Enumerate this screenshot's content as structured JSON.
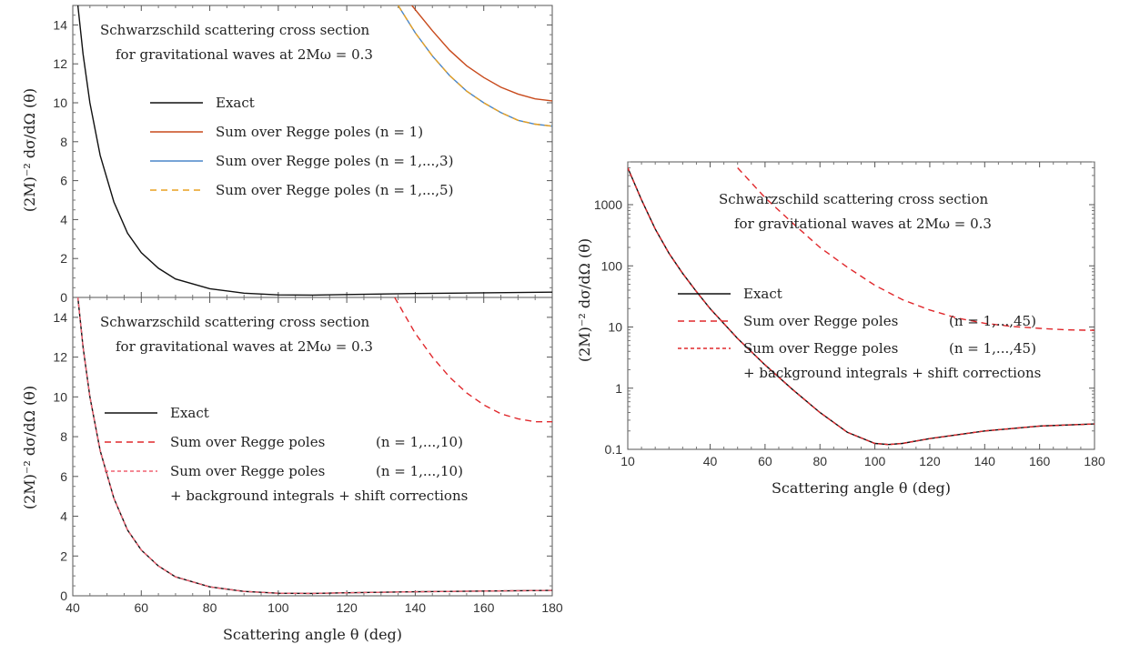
{
  "chart_data": [
    {
      "type": "line",
      "scale": "linear",
      "xlim": [
        40,
        180
      ],
      "ylim": [
        0,
        15
      ],
      "x_ticks": [],
      "y_ticks": [
        0,
        2,
        4,
        6,
        8,
        10,
        12,
        14
      ],
      "ylabel": "(2M)⁻² dσ/dΩ (θ)",
      "xlabel": "",
      "annotation": [
        "Schwarzschild scattering cross section",
        "for gravitational waves at 2Mω = 0.3"
      ],
      "legend_placement": "left-middle",
      "series": [
        {
          "name": "Exact",
          "color": "#111111",
          "style": "solid",
          "points": [
            [
              41.5,
              15
            ],
            [
              43,
              12.5
            ],
            [
              45,
              10
            ],
            [
              48,
              7.3
            ],
            [
              52,
              4.9
            ],
            [
              56,
              3.3
            ],
            [
              60,
              2.3
            ],
            [
              65,
              1.5
            ],
            [
              70,
              0.95
            ],
            [
              80,
              0.45
            ],
            [
              90,
              0.22
            ],
            [
              100,
              0.13
            ],
            [
              110,
              0.12
            ],
            [
              120,
              0.15
            ],
            [
              140,
              0.2
            ],
            [
              160,
              0.24
            ],
            [
              180,
              0.27
            ]
          ]
        },
        {
          "name": "Sum over Regge poles (n = 1)",
          "color": "#c84a1c",
          "style": "solid",
          "points": [
            [
              139,
              15
            ],
            [
              145,
              13.7
            ],
            [
              150,
              12.7
            ],
            [
              155,
              11.9
            ],
            [
              160,
              11.3
            ],
            [
              165,
              10.8
            ],
            [
              170,
              10.45
            ],
            [
              175,
              10.2
            ],
            [
              180,
              10.1
            ]
          ]
        },
        {
          "name": "Sum over Regge poles (n = 1,...,3)",
          "color": "#4a86c8",
          "style": "solid",
          "points": [
            [
              135,
              15
            ],
            [
              140,
              13.6
            ],
            [
              145,
              12.4
            ],
            [
              150,
              11.4
            ],
            [
              155,
              10.6
            ],
            [
              160,
              10
            ],
            [
              165,
              9.5
            ],
            [
              170,
              9.1
            ],
            [
              175,
              8.9
            ],
            [
              180,
              8.8
            ]
          ]
        },
        {
          "name": "Sum over Regge poles (n = 1,...,5)",
          "color": "#e8a020",
          "style": "dashed",
          "points": [
            [
              135,
              15
            ],
            [
              140,
              13.6
            ],
            [
              145,
              12.4
            ],
            [
              150,
              11.4
            ],
            [
              155,
              10.6
            ],
            [
              160,
              10
            ],
            [
              165,
              9.5
            ],
            [
              170,
              9.1
            ],
            [
              175,
              8.9
            ],
            [
              180,
              8.8
            ]
          ]
        }
      ]
    },
    {
      "type": "line",
      "scale": "linear",
      "xlim": [
        40,
        180
      ],
      "ylim": [
        0,
        15
      ],
      "x_ticks": [
        40,
        60,
        80,
        100,
        120,
        140,
        160,
        180
      ],
      "y_ticks": [
        0,
        2,
        4,
        6,
        8,
        10,
        12,
        14
      ],
      "xlabel": "Scattering angle θ (deg)",
      "ylabel": "(2M)⁻² dσ/dΩ (θ)",
      "annotation": [
        "Schwarzschild scattering cross section",
        "for gravitational waves at 2Mω = 0.3"
      ],
      "legend_placement": "left-middle",
      "legend_extra": "+ background integrals + shift corrections",
      "series": [
        {
          "name": "Exact",
          "color": "#111111",
          "style": "solid",
          "points": [
            [
              41.5,
              15
            ],
            [
              43,
              12.5
            ],
            [
              45,
              10
            ],
            [
              48,
              7.3
            ],
            [
              52,
              4.9
            ],
            [
              56,
              3.3
            ],
            [
              60,
              2.3
            ],
            [
              65,
              1.5
            ],
            [
              70,
              0.95
            ],
            [
              80,
              0.45
            ],
            [
              90,
              0.22
            ],
            [
              100,
              0.13
            ],
            [
              110,
              0.12
            ],
            [
              120,
              0.15
            ],
            [
              140,
              0.2
            ],
            [
              160,
              0.24
            ],
            [
              180,
              0.27
            ]
          ]
        },
        {
          "name": "Sum over Regge poles",
          "label_n": "(n = 1,...,10)",
          "color": "#e0282c",
          "style": "dashed",
          "points": [
            [
              134,
              15
            ],
            [
              140,
              13.2
            ],
            [
              145,
              12
            ],
            [
              150,
              11
            ],
            [
              155,
              10.2
            ],
            [
              160,
              9.6
            ],
            [
              165,
              9.15
            ],
            [
              170,
              8.9
            ],
            [
              175,
              8.75
            ],
            [
              180,
              8.75
            ]
          ]
        },
        {
          "name": "Sum over Regge poles",
          "label_n": "(n = 1,...,10)",
          "color": "#f06070",
          "style": "dashed-fine",
          "points": [
            [
              41.5,
              15
            ],
            [
              43,
              12.5
            ],
            [
              45,
              10
            ],
            [
              48,
              7.3
            ],
            [
              52,
              4.9
            ],
            [
              56,
              3.3
            ],
            [
              60,
              2.3
            ],
            [
              65,
              1.5
            ],
            [
              70,
              0.95
            ],
            [
              80,
              0.45
            ],
            [
              90,
              0.22
            ],
            [
              100,
              0.13
            ],
            [
              110,
              0.12
            ],
            [
              120,
              0.15
            ],
            [
              140,
              0.2
            ],
            [
              160,
              0.24
            ],
            [
              180,
              0.27
            ]
          ]
        }
      ]
    },
    {
      "type": "line",
      "scale": "log-y",
      "xlim": [
        10,
        180
      ],
      "ylim": [
        0.1,
        5000
      ],
      "x_ticks": [
        10,
        40,
        60,
        80,
        100,
        120,
        140,
        160,
        180
      ],
      "y_ticks": [
        0.1,
        1,
        10,
        100,
        1000
      ],
      "y_tick_labels": [
        "0.1",
        "1",
        "10",
        "100",
        "1000"
      ],
      "xlabel": "Scattering angle θ (deg)",
      "ylabel": "(2M)⁻² dσ/dΩ (θ)",
      "annotation": [
        "Schwarzschild scattering cross section",
        "for gravitational waves at 2Mω = 0.3"
      ],
      "legend_placement": "left-middle",
      "legend_extra": "+ background integrals + shift corrections",
      "series": [
        {
          "name": "Exact",
          "color": "#111111",
          "style": "solid",
          "points": [
            [
              10,
              4000
            ],
            [
              15,
              1200
            ],
            [
              20,
              400
            ],
            [
              25,
              160
            ],
            [
              30,
              75
            ],
            [
              35,
              38
            ],
            [
              40,
              20
            ],
            [
              50,
              6.5
            ],
            [
              60,
              2.4
            ],
            [
              70,
              0.95
            ],
            [
              80,
              0.4
            ],
            [
              90,
              0.19
            ],
            [
              100,
              0.125
            ],
            [
              105,
              0.12
            ],
            [
              110,
              0.125
            ],
            [
              120,
              0.15
            ],
            [
              140,
              0.2
            ],
            [
              160,
              0.24
            ],
            [
              180,
              0.26
            ]
          ]
        },
        {
          "name": "Sum over Regge poles",
          "label_n": "(n = 1,...,45)",
          "color": "#e0282c",
          "style": "dashed",
          "points": [
            [
              50,
              4000
            ],
            [
              60,
              1300
            ],
            [
              70,
              500
            ],
            [
              80,
              200
            ],
            [
              90,
              95
            ],
            [
              100,
              48
            ],
            [
              110,
              28
            ],
            [
              120,
              19
            ],
            [
              130,
              14
            ],
            [
              140,
              11.5
            ],
            [
              150,
              10.2
            ],
            [
              160,
              9.5
            ],
            [
              170,
              9
            ],
            [
              180,
              8.8
            ]
          ]
        },
        {
          "name": "Sum over Regge poles",
          "label_n": "(n = 1,...,45)",
          "color": "#e0282c",
          "style": "dashed-fine",
          "points": [
            [
              10,
              4000
            ],
            [
              15,
              1200
            ],
            [
              20,
              400
            ],
            [
              25,
              160
            ],
            [
              30,
              75
            ],
            [
              35,
              38
            ],
            [
              40,
              20
            ],
            [
              50,
              6.5
            ],
            [
              60,
              2.4
            ],
            [
              70,
              0.95
            ],
            [
              80,
              0.4
            ],
            [
              90,
              0.19
            ],
            [
              100,
              0.125
            ],
            [
              105,
              0.12
            ],
            [
              110,
              0.125
            ],
            [
              120,
              0.15
            ],
            [
              140,
              0.2
            ],
            [
              160,
              0.24
            ],
            [
              180,
              0.26
            ]
          ]
        }
      ]
    }
  ]
}
